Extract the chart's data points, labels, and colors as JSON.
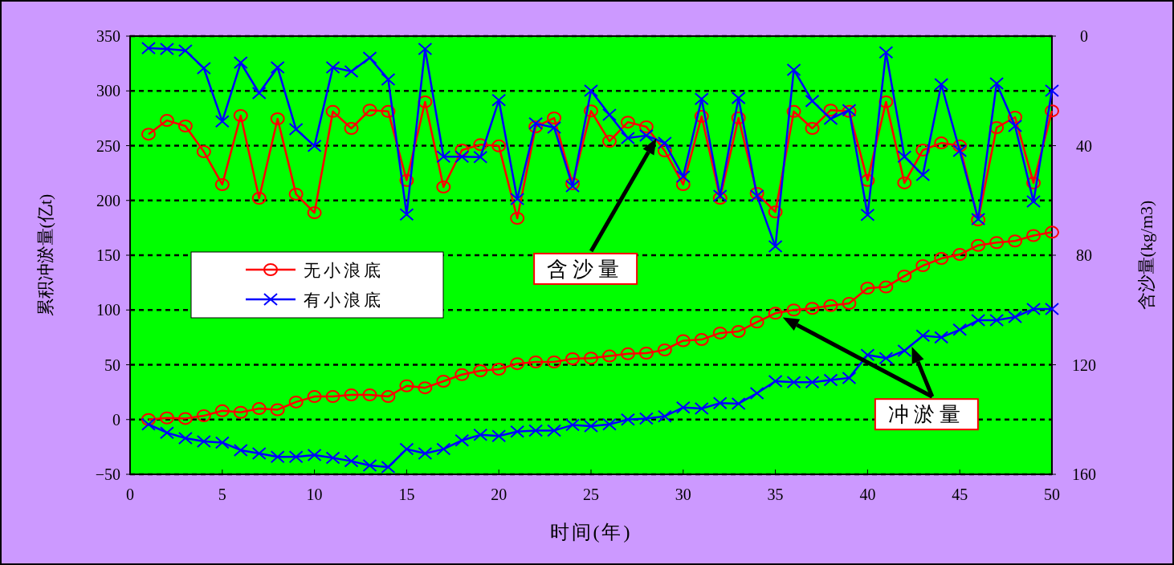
{
  "chart_data": {
    "type": "line",
    "xlabel": "时间(年)",
    "ylabel": "累积冲淤量(亿t)",
    "y2label": "含沙量(kg/m3)",
    "x": [
      1,
      2,
      3,
      4,
      5,
      6,
      7,
      8,
      9,
      10,
      11,
      12,
      13,
      14,
      15,
      16,
      17,
      18,
      19,
      20,
      21,
      22,
      23,
      24,
      25,
      26,
      27,
      28,
      29,
      30,
      31,
      32,
      33,
      34,
      35,
      36,
      37,
      38,
      39,
      40,
      41,
      42,
      43,
      44,
      45,
      46,
      47,
      48,
      49,
      50
    ],
    "xlim": [
      0,
      50
    ],
    "xticks": [
      0,
      5,
      10,
      15,
      20,
      25,
      30,
      35,
      40,
      45,
      50
    ],
    "ylim": [
      -50,
      350
    ],
    "yticks": [
      -50,
      0,
      50,
      100,
      150,
      200,
      250,
      300,
      350
    ],
    "y2lim": [
      160,
      0
    ],
    "y2ticks": [
      0,
      40,
      80,
      120,
      160
    ],
    "grid": "y",
    "legend": "left",
    "line_style": "solid",
    "series": [
      {
        "name": "无小浪底",
        "color": "#ff0000",
        "marker": "circle",
        "axis": "y2",
        "values": [
          35.8,
          30.8,
          32.8,
          42.2,
          54.2,
          29.0,
          59.2,
          30.2,
          57.7,
          64.5,
          27.5,
          33.7,
          27.0,
          27.5,
          52.7,
          24.0,
          55.1,
          41.6,
          39.6,
          40.1,
          66.5,
          33.1,
          29.9,
          53.9,
          27.3,
          38.4,
          31.4,
          33.1,
          41.9,
          54.2,
          29.3,
          59.2,
          29.9,
          57.4,
          64.2,
          27.5,
          33.7,
          27.0,
          27.5,
          52.7,
          24.0,
          53.6,
          41.6,
          39.0,
          40.1,
          67.1,
          33.4,
          29.6,
          53.6,
          27.3
        ]
      },
      {
        "name": "有小浪底",
        "color": "#0000ff",
        "marker": "cross",
        "axis": "y2",
        "values": [
          4.4,
          4.7,
          5.3,
          11.7,
          31.1,
          9.7,
          20.8,
          11.4,
          34.0,
          40.1,
          11.4,
          12.9,
          7.9,
          15.8,
          65.1,
          4.7,
          44.0,
          44.0,
          44.2,
          23.4,
          59.5,
          31.9,
          33.4,
          54.8,
          19.9,
          28.7,
          37.2,
          36.3,
          39.0,
          51.3,
          22.9,
          58.3,
          22.6,
          58.3,
          76.8,
          12.3,
          23.7,
          30.2,
          27.0,
          65.3,
          5.9,
          44.0,
          50.7,
          17.6,
          41.9,
          66.8,
          17.3,
          32.8,
          60.4,
          19.9
        ]
      },
      {
        "color": "#ff0000",
        "marker": "circle",
        "values": [
          0,
          1.5,
          1,
          3.5,
          8,
          6.6,
          10,
          9,
          16,
          21,
          21,
          22.5,
          22.5,
          21,
          30.8,
          29,
          35,
          41,
          44.5,
          46,
          51,
          52.6,
          52.6,
          55.5,
          56,
          58,
          60,
          60.6,
          63.6,
          72,
          73,
          79,
          80.4,
          89,
          97,
          100,
          101.5,
          104,
          106,
          120,
          121,
          131,
          140.5,
          147,
          150.7,
          159,
          161.5,
          163,
          168,
          171
        ]
      },
      {
        "color": "#0000ff",
        "marker": "cross",
        "values": [
          -4.4,
          -12,
          -17,
          -20,
          -21,
          -28,
          -31,
          -34,
          -34,
          -32.4,
          -35,
          -38,
          -42,
          -43.4,
          -27,
          -31,
          -27,
          -19,
          -14,
          -15,
          -11,
          -10,
          -10,
          -5,
          -6,
          -4.4,
          0,
          1,
          3,
          11,
          10,
          15,
          14.5,
          24,
          35,
          34,
          34,
          36,
          38,
          59,
          56,
          62.8,
          76.6,
          75,
          82,
          90.6,
          90.6,
          93.6,
          101,
          101
        ]
      }
    ],
    "annotations": [
      "含沙量",
      "冲淤量"
    ]
  }
}
